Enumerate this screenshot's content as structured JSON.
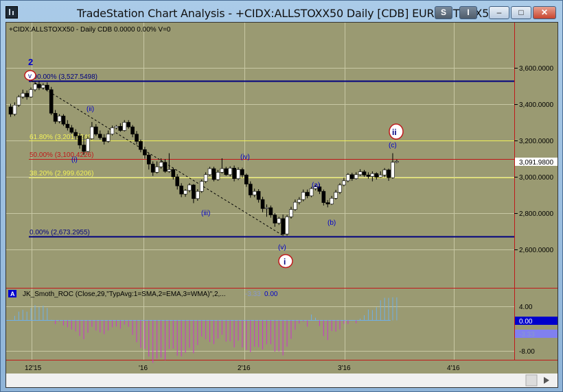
{
  "window": {
    "title": "TradeStation Chart Analysis - +CIDX:ALLSTOXX50 Daily [CDB] EURO STOXX50",
    "buttons": {
      "style": "S",
      "indicator": "I",
      "minimize": "–",
      "maximize": "□",
      "close": "✕"
    }
  },
  "chart": {
    "header": "+CIDX:ALLSTOXX50 - Daily   CDB  0.0000  0.00%  V=0",
    "price_axis": [
      "3,600.0000",
      "3,400.0000",
      "3,200.0000",
      "3,000.0000",
      "2,800.0000",
      "2,600.0000"
    ],
    "last_price": "3,091.9800",
    "fib_labels": {
      "f100": "100.00% (3,527.5498)",
      "f618": "61.80% (3,201.5246)",
      "f50": "50.00% (3,100.4226)",
      "f382": "38.20% (2,999.6206)",
      "f0": "0.00% (2,673.2955)"
    },
    "wave_labels": {
      "w2": "2",
      "v_top": "v",
      "i_minor": "(i)",
      "ii_minor": "(ii)",
      "iii_minor": "(iii)",
      "iv_minor": "(iv)",
      "v_minor": "(v)",
      "i_major": "i",
      "a_minor": "(a)",
      "b_minor": "(b)",
      "c_minor": "(c)",
      "ii_major": "ii"
    },
    "x_axis": [
      "12'15",
      "'16",
      "2'16",
      "3'16",
      "4'16"
    ],
    "colors": {
      "background": "#9a9a72",
      "bull": "#ffffff",
      "bear": "#000000",
      "fib_gold": "#f2f25a",
      "fib_red": "#c0181a",
      "fib_navy": "#000080"
    }
  },
  "indicator": {
    "badge": "A",
    "name": "JK_Smoth_ROC (Close,29,\"TypAvg:1=SMA,2=EMA,3=WMA)\",2,...",
    "value_neg": "-3.33",
    "value_zero": "0.00",
    "axis": [
      "4.00",
      "-8.00"
    ],
    "marker_zero": "0.00",
    "marker_neg": "-3.33"
  },
  "candles": [
    [
      3385,
      3345,
      3402,
      3330
    ],
    [
      3345,
      3395,
      3410,
      3335
    ],
    [
      3395,
      3440,
      3450,
      3385
    ],
    [
      3440,
      3460,
      3480,
      3430
    ],
    [
      3460,
      3440,
      3475,
      3425
    ],
    [
      3440,
      3480,
      3492,
      3435
    ],
    [
      3480,
      3510,
      3525,
      3470
    ],
    [
      3510,
      3490,
      3528,
      3478
    ],
    [
      3490,
      3505,
      3515,
      3480
    ],
    [
      3505,
      3480,
      3520,
      3470
    ],
    [
      3480,
      3350,
      3495,
      3340
    ],
    [
      3350,
      3305,
      3368,
      3292
    ],
    [
      3305,
      3335,
      3345,
      3295
    ],
    [
      3335,
      3290,
      3345,
      3280
    ],
    [
      3290,
      3270,
      3312,
      3255
    ],
    [
      3270,
      3245,
      3285,
      3238
    ],
    [
      3245,
      3225,
      3262,
      3205
    ],
    [
      3225,
      3175,
      3240,
      3155
    ],
    [
      3175,
      3140,
      3230,
      3120
    ],
    [
      3140,
      3210,
      3222,
      3135
    ],
    [
      3210,
      3275,
      3302,
      3205
    ],
    [
      3275,
      3235,
      3290,
      3225
    ],
    [
      3235,
      3215,
      3255,
      3205
    ],
    [
      3215,
      3195,
      3235,
      3178
    ],
    [
      3195,
      3235,
      3255,
      3188
    ],
    [
      3235,
      3270,
      3282,
      3228
    ],
    [
      3270,
      3278,
      3285,
      3262
    ],
    [
      3278,
      3255,
      3295,
      3248
    ],
    [
      3255,
      3300,
      3312,
      3250
    ],
    [
      3300,
      3275,
      3312,
      3265
    ],
    [
      3275,
      3235,
      3285,
      3218
    ],
    [
      3235,
      3195,
      3252,
      3178
    ],
    [
      3195,
      3150,
      3205,
      3135
    ],
    [
      3150,
      3120,
      3165,
      3100
    ],
    [
      3120,
      3070,
      3132,
      3040
    ],
    [
      3070,
      3025,
      3085,
      3005
    ],
    [
      3025,
      3055,
      3085,
      3018
    ],
    [
      3055,
      3080,
      3102,
      3045
    ],
    [
      3080,
      3030,
      3098,
      3022
    ],
    [
      3030,
      3040,
      3130,
      3022
    ],
    [
      3040,
      3000,
      3050,
      2985
    ],
    [
      3000,
      2950,
      3015,
      2930
    ],
    [
      2950,
      2905,
      2965,
      2888
    ],
    [
      2905,
      2925,
      2932,
      2890
    ],
    [
      2925,
      2955,
      2965,
      2915
    ],
    [
      2955,
      2880,
      2960,
      2855
    ],
    [
      2880,
      2920,
      2932,
      2868
    ],
    [
      2920,
      2975,
      2985,
      2912
    ],
    [
      2975,
      3012,
      3025,
      2965
    ],
    [
      3012,
      3045,
      3055,
      3005
    ],
    [
      3045,
      2985,
      3055,
      2975
    ],
    [
      2985,
      3025,
      3038,
      2978
    ],
    [
      3025,
      3045,
      3102,
      3018
    ],
    [
      3045,
      3012,
      3055,
      3005
    ],
    [
      3012,
      3048,
      3058,
      3002
    ],
    [
      3048,
      2990,
      3062,
      2975
    ],
    [
      2990,
      3040,
      3052,
      2982
    ],
    [
      3040,
      3010,
      3050,
      2995
    ],
    [
      3010,
      2960,
      3018,
      2945
    ],
    [
      2960,
      2900,
      2975,
      2885
    ],
    [
      2900,
      2920,
      2935,
      2888
    ],
    [
      2920,
      2875,
      2932,
      2858
    ],
    [
      2875,
      2825,
      2890,
      2805
    ],
    [
      2825,
      2830,
      2848,
      2780
    ],
    [
      2830,
      2790,
      2842,
      2775
    ],
    [
      2790,
      2745,
      2800,
      2725
    ],
    [
      2745,
      2770,
      2780,
      2735
    ],
    [
      2770,
      2685,
      2792,
      2675
    ],
    [
      2685,
      2780,
      2790,
      2676
    ],
    [
      2780,
      2820,
      2835,
      2770
    ],
    [
      2820,
      2860,
      2875,
      2812
    ],
    [
      2860,
      2875,
      2888,
      2848
    ],
    [
      2875,
      2915,
      2930,
      2865
    ],
    [
      2915,
      2895,
      2930,
      2882
    ],
    [
      2895,
      2935,
      2945,
      2888
    ],
    [
      2935,
      2945,
      2955,
      2925
    ],
    [
      2945,
      2920,
      2962,
      2905
    ],
    [
      2920,
      2858,
      2930,
      2842
    ],
    [
      2858,
      2850,
      2872,
      2832
    ],
    [
      2850,
      2882,
      2895,
      2845
    ],
    [
      2882,
      2915,
      2928,
      2875
    ],
    [
      2915,
      2955,
      2965,
      2905
    ],
    [
      2955,
      2978,
      2995,
      2948
    ],
    [
      2978,
      3012,
      3020,
      2970
    ],
    [
      3012,
      2990,
      3022,
      2978
    ],
    [
      2990,
      3012,
      3025,
      2985
    ],
    [
      3012,
      3028,
      3042,
      3005
    ],
    [
      3028,
      3010,
      3038,
      3000
    ],
    [
      3010,
      3002,
      3025,
      2990
    ],
    [
      3002,
      3018,
      3030,
      2975
    ],
    [
      3018,
      2998,
      3025,
      2985
    ],
    [
      2998,
      3010,
      3030,
      2995
    ],
    [
      3010,
      3038,
      3048,
      2998
    ],
    [
      3038,
      2995,
      3045,
      2978
    ],
    [
      2995,
      3080,
      3130,
      2990
    ],
    [
      3080,
      3085,
      3095,
      3075
    ]
  ]
}
